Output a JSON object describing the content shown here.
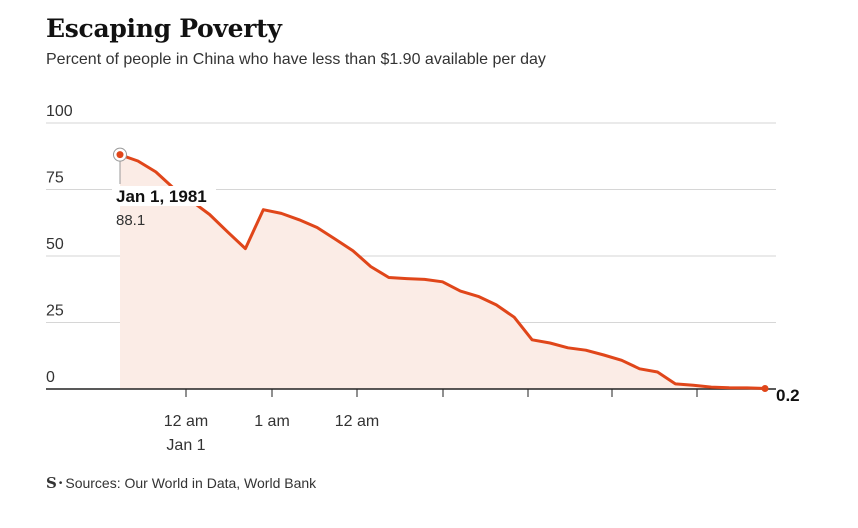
{
  "header": {
    "title": "Escaping Poverty",
    "subtitle": "Percent of people in China who have less than $1.90 available per day"
  },
  "footer": {
    "logo": "S",
    "sources": "Sources: Our World in Data, World Bank"
  },
  "colors": {
    "line": "#e0461a",
    "area": "#fbece6",
    "grid": "#d6d6d6",
    "axis": "#222222"
  },
  "chart_data": {
    "type": "area",
    "title": "Escaping Poverty",
    "subtitle": "Percent of people in China who have less than $1.90 available per day",
    "ylim": [
      0,
      100
    ],
    "y_ticks": [
      "100",
      "75",
      "50",
      "25",
      "0"
    ],
    "x_tick_labels": [
      {
        "line1": "12 am",
        "line2": "Jan 1"
      },
      {
        "line1": "1 am",
        "line2": ""
      },
      {
        "line1": "12 am",
        "line2": ""
      }
    ],
    "series": [
      {
        "values": [
          88.1,
          85.7,
          81.6,
          75.4,
          70.6,
          65.6,
          59.1,
          52.8,
          67.4,
          66.0,
          63.6,
          60.7,
          56.4,
          52.0,
          46.0,
          41.9,
          41.5,
          41.2,
          40.3,
          36.8,
          34.8,
          31.6,
          27.0,
          18.5,
          17.3,
          15.5,
          14.6,
          12.8,
          10.8,
          7.6,
          6.4,
          1.9,
          1.4,
          0.7,
          0.5,
          0.4,
          0.2
        ]
      }
    ],
    "annotations": [
      {
        "label": "Jan 1, 1981",
        "value": "88.1"
      },
      {
        "label": "",
        "value": "0.2"
      }
    ],
    "grid": true,
    "gridlines": "horizontal"
  }
}
